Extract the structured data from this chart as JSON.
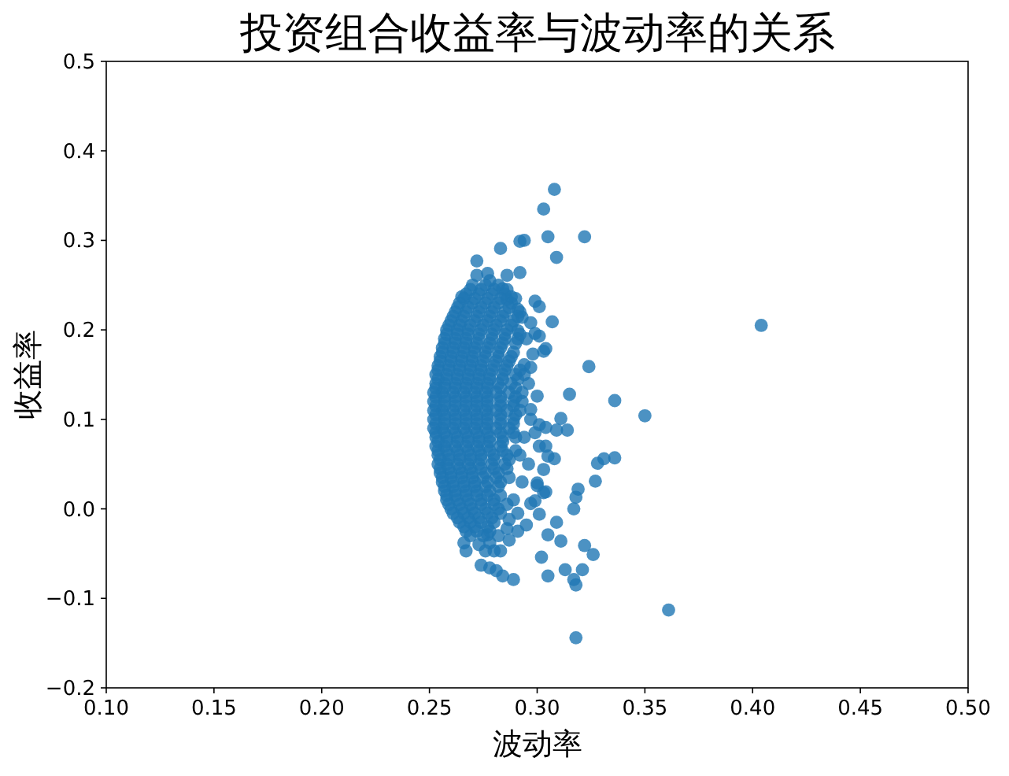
{
  "chart_data": {
    "type": "scatter",
    "title": "投资组合收益率与波动率的关系",
    "xlabel": "波动率",
    "ylabel": "收益率",
    "xlim": [
      0.1,
      0.5
    ],
    "ylim": [
      -0.2,
      0.5
    ],
    "xticks": [
      {
        "value": 0.1,
        "label": "0.10"
      },
      0.15,
      {
        "value": 0.2,
        "label": "0.20"
      },
      0.25,
      {
        "value": 0.3,
        "label": "0.30"
      },
      0.35,
      {
        "value": 0.4,
        "label": "0.40"
      },
      0.45,
      {
        "value": 0.5,
        "label": "0.50"
      }
    ],
    "yticks": [
      {
        "value": -0.2,
        "label": "−0.2"
      },
      {
        "value": -0.1,
        "label": "−0.1"
      },
      {
        "value": 0,
        "label": "0.0"
      },
      0.1,
      0.2,
      0.3,
      0.4,
      0.5
    ],
    "marker": "circle",
    "x": [
      0.27,
      0.276,
      0.282,
      0.267,
      0.273,
      0.279,
      0.285,
      0.264,
      0.27,
      0.276,
      0.282,
      0.288,
      0.262,
      0.267,
      0.273,
      0.279,
      0.285,
      0.26,
      0.265,
      0.271,
      0.277,
      0.283,
      0.289,
      0.258,
      0.263,
      0.268,
      0.274,
      0.28,
      0.286,
      0.257,
      0.262,
      0.267,
      0.273,
      0.279,
      0.285,
      0.291,
      0.256,
      0.261,
      0.266,
      0.271,
      0.277,
      0.283,
      0.255,
      0.26,
      0.265,
      0.27,
      0.276,
      0.282,
      0.288,
      0.254,
      0.259,
      0.264,
      0.269,
      0.274,
      0.28,
      0.286,
      0.253,
      0.258,
      0.263,
      0.268,
      0.273,
      0.278,
      0.284,
      0.29,
      0.253,
      0.257,
      0.262,
      0.267,
      0.272,
      0.277,
      0.282,
      0.288,
      0.252,
      0.256,
      0.261,
      0.266,
      0.271,
      0.276,
      0.281,
      0.287,
      0.293,
      0.252,
      0.257,
      0.262,
      0.267,
      0.272,
      0.277,
      0.283,
      0.289,
      0.252,
      0.256,
      0.261,
      0.266,
      0.271,
      0.276,
      0.281,
      0.286,
      0.292,
      0.252,
      0.257,
      0.262,
      0.267,
      0.272,
      0.277,
      0.283,
      0.289,
      0.252,
      0.256,
      0.261,
      0.266,
      0.271,
      0.276,
      0.281,
      0.287,
      0.253,
      0.258,
      0.263,
      0.268,
      0.273,
      0.278,
      0.284,
      0.29,
      0.253,
      0.257,
      0.262,
      0.267,
      0.272,
      0.277,
      0.283,
      0.254,
      0.259,
      0.264,
      0.269,
      0.274,
      0.28,
      0.286,
      0.254,
      0.258,
      0.263,
      0.268,
      0.273,
      0.279,
      0.285,
      0.255,
      0.26,
      0.265,
      0.27,
      0.276,
      0.282,
      0.256,
      0.261,
      0.266,
      0.271,
      0.277,
      0.283,
      0.257,
      0.262,
      0.267,
      0.272,
      0.278,
      0.258,
      0.263,
      0.268,
      0.274,
      0.28,
      0.26,
      0.265,
      0.27,
      0.276,
      0.282,
      0.263,
      0.268,
      0.273,
      0.279,
      0.266,
      0.271,
      0.277,
      0.269,
      0.275,
      0.308,
      0.303,
      0.283,
      0.292,
      0.294,
      0.305,
      0.322,
      0.309,
      0.272,
      0.272,
      0.277,
      0.286,
      0.292,
      0.299,
      0.301,
      0.307,
      0.324,
      0.315,
      0.336,
      0.297,
      0.299,
      0.301,
      0.292,
      0.295,
      0.298,
      0.303,
      0.304,
      0.294,
      0.297,
      0.3,
      0.297,
      0.404,
      0.35,
      0.311,
      0.314,
      0.309,
      0.304,
      0.301,
      0.299,
      0.301,
      0.304,
      0.305,
      0.308,
      0.303,
      0.3,
      0.303,
      0.297,
      0.301,
      0.295,
      0.336,
      0.331,
      0.328,
      0.327,
      0.319,
      0.318,
      0.317,
      0.309,
      0.305,
      0.311,
      0.322,
      0.326,
      0.302,
      0.313,
      0.321,
      0.317,
      0.318,
      0.305,
      0.318,
      0.361,
      0.289,
      0.284,
      0.281,
      0.278,
      0.274,
      0.283,
      0.28,
      0.276,
      0.267,
      0.266,
      0.277,
      0.291,
      0.286,
      0.299,
      0.304,
      0.3,
      0.294,
      0.296,
      0.293,
      0.297,
      0.294,
      0.292,
      0.296,
      0.293,
      0.289,
      0.291,
      0.287,
      0.282,
      0.278,
      0.273,
      0.287,
      0.278,
      0.265,
      0.286,
      0.288,
      0.284,
      0.291,
      0.293,
      0.291,
      0.269,
      0.274,
      0.28,
      0.286,
      0.266,
      0.271,
      0.277,
      0.283,
      0.29,
      0.263,
      0.268,
      0.274,
      0.28,
      0.287,
      0.261,
      0.266,
      0.272,
      0.278,
      0.284,
      0.291,
      0.259,
      0.264,
      0.269,
      0.275,
      0.281,
      0.288,
      0.258,
      0.263,
      0.268,
      0.273,
      0.279,
      0.285,
      0.292,
      0.257,
      0.262,
      0.267,
      0.272,
      0.278,
      0.284,
      0.29,
      0.256,
      0.261,
      0.266,
      0.271,
      0.276,
      0.282,
      0.289,
      0.255,
      0.26,
      0.265,
      0.27,
      0.275,
      0.281,
      0.287,
      0.254,
      0.259,
      0.264,
      0.269,
      0.274,
      0.279,
      0.285,
      0.292,
      0.254,
      0.258,
      0.263,
      0.268,
      0.273,
      0.278,
      0.284,
      0.291,
      0.253,
      0.257,
      0.262,
      0.267,
      0.272,
      0.277,
      0.283,
      0.29,
      0.253,
      0.257,
      0.262,
      0.267,
      0.272,
      0.277,
      0.283,
      0.29,
      0.253,
      0.257,
      0.262,
      0.267,
      0.272,
      0.277,
      0.283,
      0.289,
      0.253,
      0.257,
      0.262,
      0.267,
      0.272,
      0.277,
      0.283,
      0.29,
      0.253,
      0.257,
      0.262,
      0.267,
      0.272,
      0.277,
      0.283,
      0.289,
      0.253,
      0.257,
      0.262,
      0.267,
      0.272,
      0.277,
      0.283,
      0.289,
      0.254,
      0.258,
      0.263,
      0.268,
      0.273,
      0.278,
      0.284,
      0.254,
      0.258,
      0.263,
      0.268,
      0.273,
      0.278,
      0.284,
      0.29,
      0.255,
      0.259,
      0.264,
      0.269,
      0.274,
      0.28,
      0.287,
      0.255,
      0.259,
      0.264,
      0.269,
      0.274,
      0.28,
      0.286,
      0.256,
      0.26,
      0.265,
      0.27,
      0.275,
      0.281,
      0.287,
      0.257,
      0.261,
      0.266,
      0.271,
      0.276,
      0.282,
      0.258,
      0.262,
      0.267,
      0.272,
      0.277,
      0.283,
      0.259,
      0.264,
      0.269,
      0.274,
      0.28,
      0.286,
      0.261,
      0.266,
      0.271,
      0.277,
      0.283,
      0.264,
      0.269,
      0.274,
      0.28,
      0.267,
      0.272,
      0.278
    ],
    "series": [
      {
        "color": "#1f77b4",
        "values": [
          0.25,
          0.25,
          0.25,
          0.24,
          0.24,
          0.24,
          0.24,
          0.23,
          0.23,
          0.23,
          0.23,
          0.23,
          0.22,
          0.22,
          0.22,
          0.22,
          0.22,
          0.21,
          0.21,
          0.21,
          0.21,
          0.21,
          0.21,
          0.2,
          0.2,
          0.2,
          0.2,
          0.2,
          0.2,
          0.19,
          0.19,
          0.19,
          0.19,
          0.19,
          0.19,
          0.19,
          0.18,
          0.18,
          0.18,
          0.18,
          0.18,
          0.18,
          0.17,
          0.17,
          0.17,
          0.17,
          0.17,
          0.17,
          0.17,
          0.16,
          0.16,
          0.16,
          0.16,
          0.16,
          0.16,
          0.16,
          0.15,
          0.15,
          0.15,
          0.15,
          0.15,
          0.15,
          0.15,
          0.15,
          0.14,
          0.14,
          0.14,
          0.14,
          0.14,
          0.14,
          0.14,
          0.14,
          0.13,
          0.13,
          0.13,
          0.13,
          0.13,
          0.13,
          0.13,
          0.13,
          0.13,
          0.12,
          0.12,
          0.12,
          0.12,
          0.12,
          0.12,
          0.12,
          0.12,
          0.11,
          0.11,
          0.11,
          0.11,
          0.11,
          0.11,
          0.11,
          0.11,
          0.11,
          0.1,
          0.1,
          0.1,
          0.1,
          0.1,
          0.1,
          0.1,
          0.1,
          0.09,
          0.09,
          0.09,
          0.09,
          0.09,
          0.09,
          0.09,
          0.09,
          0.08,
          0.08,
          0.08,
          0.08,
          0.08,
          0.08,
          0.08,
          0.08,
          0.07,
          0.07,
          0.07,
          0.07,
          0.07,
          0.07,
          0.07,
          0.06,
          0.06,
          0.06,
          0.06,
          0.06,
          0.06,
          0.06,
          0.05,
          0.05,
          0.05,
          0.05,
          0.05,
          0.05,
          0.05,
          0.04,
          0.04,
          0.04,
          0.04,
          0.04,
          0.04,
          0.03,
          0.03,
          0.03,
          0.03,
          0.03,
          0.03,
          0.02,
          0.02,
          0.02,
          0.02,
          0.02,
          0.01,
          0.01,
          0.01,
          0.01,
          0.01,
          0,
          0,
          0,
          0,
          0,
          -0.01,
          -0.01,
          -0.01,
          -0.01,
          -0.02,
          -0.02,
          -0.02,
          -0.03,
          -0.03,
          0.357,
          0.335,
          0.291,
          0.299,
          0.3,
          0.304,
          0.304,
          0.281,
          0.277,
          0.261,
          0.263,
          0.261,
          0.264,
          0.232,
          0.226,
          0.209,
          0.159,
          0.128,
          0.121,
          0.208,
          0.196,
          0.193,
          0.22,
          0.19,
          0.173,
          0.176,
          0.179,
          0.161,
          0.158,
          0.126,
          0.111,
          0.205,
          0.104,
          0.101,
          0.088,
          0.088,
          0.091,
          0.094,
          0.085,
          0.07,
          0.07,
          0.059,
          0.056,
          0.044,
          0.029,
          0.018,
          0.006,
          -0.006,
          -0.018,
          0.057,
          0.056,
          0.051,
          0.031,
          0.022,
          0.013,
          0,
          -0.015,
          -0.029,
          -0.036,
          -0.041,
          -0.051,
          -0.054,
          -0.068,
          -0.068,
          -0.079,
          -0.085,
          -0.075,
          -0.144,
          -0.113,
          -0.079,
          -0.075,
          -0.069,
          -0.066,
          -0.063,
          -0.047,
          -0.047,
          -0.047,
          -0.047,
          -0.038,
          -0.029,
          -0.025,
          -0.022,
          0.009,
          0.019,
          0.026,
          0.15,
          0.14,
          0.12,
          0.1,
          0.08,
          0.06,
          0.05,
          0.03,
          0.01,
          -0.005,
          -0.012,
          -0.03,
          -0.038,
          -0.04,
          -0.035,
          0.255,
          0.237,
          0.234,
          0.237,
          0.246,
          0.223,
          0.214,
          0.199,
          0.245,
          0.245,
          0.245,
          0.245,
          0.235,
          0.235,
          0.235,
          0.235,
          0.235,
          0.225,
          0.225,
          0.225,
          0.225,
          0.225,
          0.215,
          0.215,
          0.215,
          0.215,
          0.215,
          0.215,
          0.205,
          0.205,
          0.205,
          0.205,
          0.205,
          0.205,
          0.195,
          0.195,
          0.195,
          0.195,
          0.195,
          0.195,
          0.195,
          0.185,
          0.185,
          0.185,
          0.185,
          0.185,
          0.185,
          0.185,
          0.175,
          0.175,
          0.175,
          0.175,
          0.175,
          0.175,
          0.175,
          0.165,
          0.165,
          0.165,
          0.165,
          0.165,
          0.165,
          0.165,
          0.155,
          0.155,
          0.155,
          0.155,
          0.155,
          0.155,
          0.155,
          0.155,
          0.145,
          0.145,
          0.145,
          0.145,
          0.145,
          0.145,
          0.145,
          0.145,
          0.135,
          0.135,
          0.135,
          0.135,
          0.135,
          0.135,
          0.135,
          0.135,
          0.125,
          0.125,
          0.125,
          0.125,
          0.125,
          0.125,
          0.125,
          0.125,
          0.115,
          0.115,
          0.115,
          0.115,
          0.115,
          0.115,
          0.115,
          0.115,
          0.105,
          0.105,
          0.105,
          0.105,
          0.105,
          0.105,
          0.105,
          0.105,
          0.095,
          0.095,
          0.095,
          0.095,
          0.095,
          0.095,
          0.095,
          0.095,
          0.085,
          0.085,
          0.085,
          0.085,
          0.085,
          0.085,
          0.085,
          0.085,
          0.075,
          0.075,
          0.075,
          0.075,
          0.075,
          0.075,
          0.075,
          0.065,
          0.065,
          0.065,
          0.065,
          0.065,
          0.065,
          0.065,
          0.065,
          0.055,
          0.055,
          0.055,
          0.055,
          0.055,
          0.055,
          0.055,
          0.045,
          0.045,
          0.045,
          0.045,
          0.045,
          0.045,
          0.045,
          0.035,
          0.035,
          0.035,
          0.035,
          0.035,
          0.035,
          0.035,
          0.025,
          0.025,
          0.025,
          0.025,
          0.025,
          0.025,
          0.015,
          0.015,
          0.015,
          0.015,
          0.015,
          0.015,
          0.005,
          0.005,
          0.005,
          0.005,
          0.005,
          0.005,
          -0.005,
          -0.005,
          -0.005,
          -0.005,
          -0.005,
          -0.015,
          -0.015,
          -0.015,
          -0.015,
          -0.025,
          -0.025,
          -0.025
        ]
      }
    ]
  }
}
